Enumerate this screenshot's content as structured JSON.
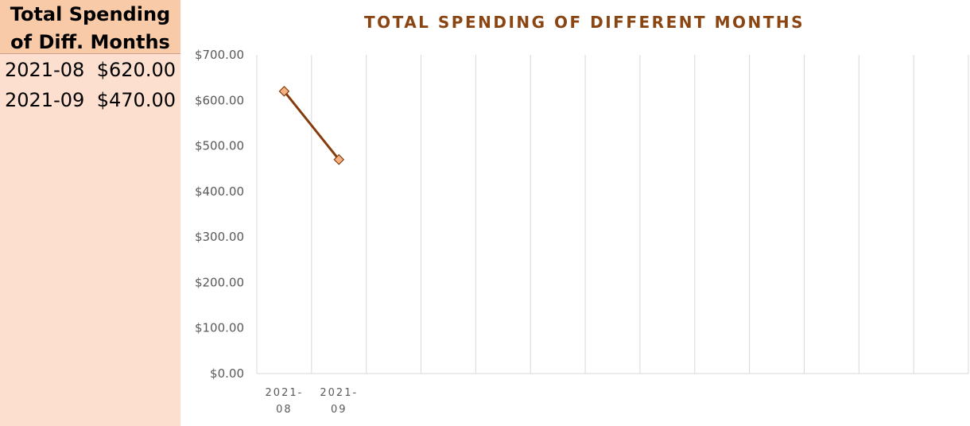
{
  "table": {
    "title_line1": "Total Spending",
    "title_line2": "of Diff. Months",
    "rows": [
      {
        "month": "2021-08",
        "amount": "$620.00"
      },
      {
        "month": "2021-09",
        "amount": "$470.00"
      }
    ]
  },
  "chart_data": {
    "type": "line",
    "title": "TOTAL SPENDING OF DIFFERENT MONTHS",
    "xlabel": "",
    "ylabel": "",
    "categories": [
      "2021-08",
      "2021-09"
    ],
    "x_tick_labels": [
      [
        "2021-",
        "08"
      ],
      [
        "2021-",
        "09"
      ]
    ],
    "slot_count": 13,
    "series": [
      {
        "values": [
          620,
          470
        ]
      }
    ],
    "ylim": [
      0,
      700
    ],
    "ytick_step": 100,
    "ytick_labels": [
      "$0.00",
      "$100.00",
      "$200.00",
      "$300.00",
      "$400.00",
      "$500.00",
      "$600.00",
      "$700.00"
    ],
    "grid": {
      "vertical": true,
      "horizontal": false
    },
    "legend": "none",
    "colors": {
      "line": "#843c0c",
      "marker_fill": "#f4b183",
      "marker_stroke": "#843c0c",
      "gridline": "#d9d9d9",
      "title": "#8b4513"
    },
    "marker": "diamond"
  }
}
